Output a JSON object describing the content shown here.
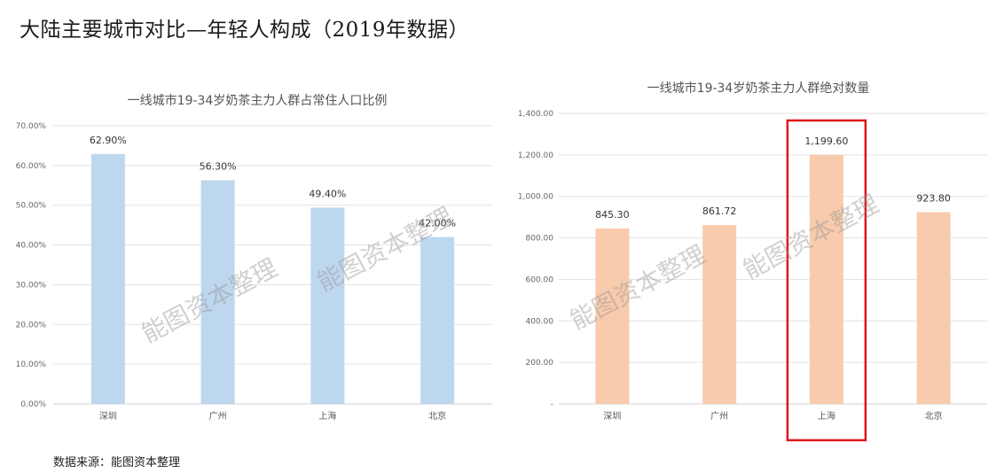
{
  "title": "大陆主要城市对比—年轻人构成（2019年数据）",
  "source": "数据来源：能图资本整理",
  "watermark": "能图资本整理",
  "chart_data": [
    {
      "type": "bar",
      "title": "一线城市19-34岁奶茶主力人群占常住人口比例",
      "categories": [
        "深圳",
        "广州",
        "上海",
        "北京"
      ],
      "values": [
        62.9,
        56.3,
        49.4,
        42.0
      ],
      "value_labels": [
        "62.90%",
        "56.30%",
        "49.40%",
        "42.00%"
      ],
      "ylim": [
        0,
        70
      ],
      "yticks": [
        0,
        10,
        20,
        30,
        40,
        50,
        60,
        70
      ],
      "ytick_labels": [
        "0.00%",
        "10.00%",
        "20.00%",
        "30.00%",
        "40.00%",
        "50.00%",
        "60.00%",
        "70.00%"
      ],
      "color": "#bdd7ee",
      "grid": true
    },
    {
      "type": "bar",
      "title": "一线城市19-34岁奶茶主力人群绝对数量",
      "categories": [
        "深圳",
        "广州",
        "上海",
        "北京"
      ],
      "values": [
        845.3,
        861.72,
        1199.6,
        923.8
      ],
      "value_labels": [
        "845.30",
        "861.72",
        "1,199.60",
        "923.80"
      ],
      "ylim": [
        0,
        1400
      ],
      "yticks": [
        0,
        200,
        400,
        600,
        800,
        1000,
        1200,
        1400
      ],
      "ytick_labels": [
        "-",
        "200.00",
        "400.00",
        "600.00",
        "800.00",
        "1,000.00",
        "1,200.00",
        "1,400.00"
      ],
      "color": "#f8cbad",
      "highlight_color": "#e0141b",
      "highlight_category": "上海",
      "grid": true
    }
  ]
}
